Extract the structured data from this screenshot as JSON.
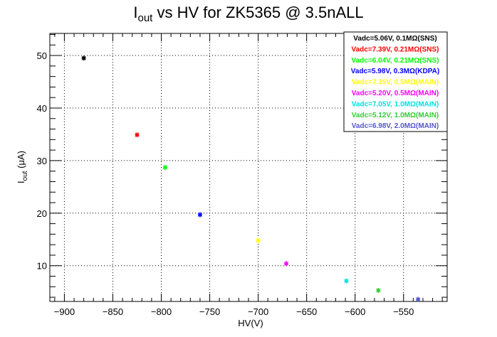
{
  "chart_data": {
    "type": "scatter",
    "title": {
      "main": "I",
      "sub": "out",
      "rest": " vs HV for ZK5365 @ 3.5nALL"
    },
    "xlabel": "HV(V)",
    "ylabel": {
      "main": "I",
      "sub": "out",
      "rest": " (μA)"
    },
    "xlim": [
      -915,
      -505
    ],
    "ylim": [
      3.2,
      54.2
    ],
    "xticks": [
      -900,
      -850,
      -800,
      -750,
      -700,
      -650,
      -600,
      -550
    ],
    "yticks": [
      10,
      20,
      30,
      40,
      50
    ],
    "xtick_labels": [
      "−900",
      "−850",
      "−800",
      "−750",
      "−700",
      "−650",
      "−600",
      "−550"
    ],
    "ytick_labels": [
      "10",
      "20",
      "30",
      "40",
      "50"
    ],
    "grid": true,
    "legend_position": "top-right",
    "series": [
      {
        "name": "Vadc=5.06V, 0.1MΩ(SNS)",
        "color": "#000000",
        "x": -880,
        "y": 49.5
      },
      {
        "name": "Vadc=7.39V, 0.21MΩ(SNS)",
        "color": "#ff0000",
        "x": -825,
        "y": 34.9
      },
      {
        "name": "Vadc=6.04V, 0.21MΩ(SNS)",
        "color": "#00ff00",
        "x": -796,
        "y": 28.7
      },
      {
        "name": "Vadc=5.98V, 0.3MΩ(KDPA)",
        "color": "#0000ff",
        "x": -760,
        "y": 19.7
      },
      {
        "name": "Vadc=7.35V, 0.5MΩ(MAIN)",
        "color": "#ffff00",
        "x": -700,
        "y": 14.8
      },
      {
        "name": "Vadc=5.20V, 0.5MΩ(MAIN)",
        "color": "#ff00ff",
        "x": -671,
        "y": 10.4
      },
      {
        "name": "Vadc=7.05V, 1.0MΩ(MAIN)",
        "color": "#00e0e0",
        "x": -609,
        "y": 7.1
      },
      {
        "name": "Vadc=5.12V, 1.0MΩ(MAIN)",
        "color": "#33cc33",
        "x": -576,
        "y": 5.3
      },
      {
        "name": "Vadc=6.98V, 2.0MΩ(MAIN)",
        "color": "#5555cc",
        "x": -535,
        "y": 3.6
      }
    ]
  }
}
